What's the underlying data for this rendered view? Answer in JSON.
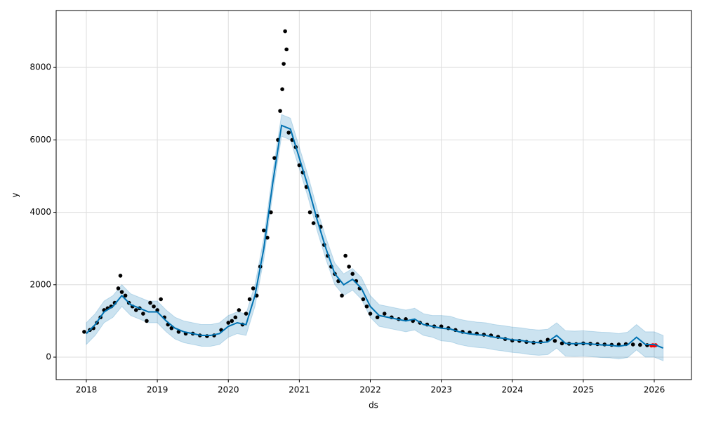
{
  "chart_data": {
    "type": "forecast",
    "xlabel": "ds",
    "ylabel": "y",
    "xlim": [
      2017.575,
      2026.524
    ],
    "ylim": [
      -620,
      9573
    ],
    "xticks": [
      2018,
      2019,
      2020,
      2021,
      2022,
      2023,
      2024,
      2025,
      2026
    ],
    "yticks": [
      0,
      2000,
      4000,
      6000,
      8000
    ],
    "grid": true,
    "x": [
      2018,
      2018.125,
      2018.25,
      2018.375,
      2018.5,
      2018.625,
      2018.75,
      2018.875,
      2019,
      2019.125,
      2019.25,
      2019.375,
      2019.5,
      2019.625,
      2019.75,
      2019.875,
      2020,
      2020.125,
      2020.25,
      2020.375,
      2020.5,
      2020.625,
      2020.75,
      2020.875,
      2021,
      2021.125,
      2021.25,
      2021.375,
      2021.5,
      2021.625,
      2021.75,
      2021.875,
      2022,
      2022.125,
      2022.25,
      2022.375,
      2022.5,
      2022.625,
      2022.75,
      2022.875,
      2023,
      2023.125,
      2023.25,
      2023.375,
      2023.5,
      2023.625,
      2023.75,
      2023.875,
      2024,
      2024.125,
      2024.25,
      2024.375,
      2024.5,
      2024.625,
      2024.75,
      2024.875,
      2025,
      2025.125,
      2025.25,
      2025.375,
      2025.5,
      2025.625,
      2025.75,
      2025.875,
      2026,
      2026.125
    ],
    "series": [
      {
        "color": "#0072b2",
        "values": [
          650,
          900,
          1250,
          1400,
          1700,
          1450,
          1350,
          1250,
          1250,
          1000,
          800,
          700,
          650,
          600,
          600,
          650,
          850,
          950,
          900,
          1700,
          3000,
          4800,
          6400,
          6300,
          5500,
          4700,
          3800,
          3000,
          2300,
          2000,
          2150,
          1900,
          1400,
          1150,
          1100,
          1050,
          1000,
          1050,
          900,
          850,
          800,
          780,
          700,
          650,
          620,
          600,
          550,
          520,
          480,
          460,
          420,
          400,
          420,
          600,
          380,
          370,
          380,
          360,
          340,
          330,
          300,
          340,
          550,
          350,
          350,
          250
        ]
      }
    ],
    "band": {
      "color": "#0072b2",
      "lower": [
        350,
        600,
        950,
        1100,
        1400,
        1150,
        1050,
        950,
        950,
        700,
        500,
        400,
        350,
        300,
        300,
        350,
        550,
        650,
        600,
        1400,
        2700,
        4500,
        6100,
        6000,
        5200,
        4400,
        3500,
        2700,
        2000,
        1700,
        1850,
        1600,
        1100,
        850,
        800,
        750,
        700,
        750,
        600,
        550,
        450,
        430,
        350,
        300,
        270,
        250,
        200,
        170,
        130,
        110,
        70,
        50,
        70,
        250,
        30,
        20,
        30,
        10,
        -10,
        -20,
        -50,
        -10,
        200,
        0,
        0,
        -100
      ],
      "upper": [
        950,
        1200,
        1550,
        1700,
        2000,
        1750,
        1650,
        1550,
        1550,
        1300,
        1100,
        1000,
        950,
        900,
        900,
        950,
        1150,
        1250,
        1200,
        2000,
        3300,
        5100,
        6700,
        6600,
        5800,
        5000,
        4100,
        3300,
        2600,
        2300,
        2450,
        2200,
        1700,
        1450,
        1400,
        1350,
        1300,
        1350,
        1200,
        1150,
        1150,
        1130,
        1050,
        1000,
        970,
        950,
        900,
        870,
        830,
        810,
        770,
        750,
        770,
        950,
        730,
        720,
        730,
        710,
        690,
        680,
        650,
        690,
        900,
        700,
        700,
        600
      ]
    },
    "points": [
      {
        "color": "#000000",
        "x": [
          2017.97,
          2018.05,
          2018.1,
          2018.15,
          2018.2,
          2018.25,
          2018.3,
          2018.35,
          2018.4,
          2018.45,
          2018.48,
          2018.5,
          2018.55,
          2018.6,
          2018.65,
          2018.7,
          2018.75,
          2018.8,
          2018.85,
          2018.9,
          2018.95,
          2019.0,
          2019.05,
          2019.1,
          2019.15,
          2019.2,
          2019.3,
          2019.4,
          2019.5,
          2019.6,
          2019.7,
          2019.8,
          2019.9,
          2020.0,
          2020.05,
          2020.1,
          2020.15,
          2020.2,
          2020.25,
          2020.3,
          2020.35,
          2020.4,
          2020.45,
          2020.5,
          2020.55,
          2020.6,
          2020.65,
          2020.7,
          2020.73,
          2020.76,
          2020.78,
          2020.8,
          2020.82,
          2020.85,
          2020.9,
          2020.95,
          2021.0,
          2021.05,
          2021.1,
          2021.15,
          2021.2,
          2021.25,
          2021.3,
          2021.35,
          2021.4,
          2021.45,
          2021.5,
          2021.55,
          2021.6,
          2021.65,
          2021.7,
          2021.75,
          2021.8,
          2021.85,
          2021.9,
          2021.95,
          2022.0,
          2022.1,
          2022.2,
          2022.3,
          2022.4,
          2022.5,
          2022.6,
          2022.7,
          2022.8,
          2022.9,
          2023.0,
          2023.1,
          2023.2,
          2023.3,
          2023.4,
          2023.5,
          2023.6,
          2023.7,
          2023.8,
          2023.9,
          2024.0,
          2024.1,
          2024.2,
          2024.3,
          2024.4,
          2024.5,
          2024.6,
          2024.7,
          2024.8,
          2024.9,
          2025.0,
          2025.1,
          2025.2,
          2025.3,
          2025.4,
          2025.5,
          2025.6,
          2025.7,
          2025.8,
          2025.9
        ],
        "values": [
          700,
          750,
          800,
          950,
          1100,
          1300,
          1350,
          1400,
          1500,
          1900,
          2250,
          1800,
          1700,
          1500,
          1400,
          1300,
          1350,
          1200,
          1000,
          1500,
          1400,
          1300,
          1600,
          1100,
          900,
          800,
          700,
          650,
          650,
          600,
          580,
          600,
          750,
          950,
          1000,
          1100,
          1300,
          900,
          1200,
          1600,
          1900,
          1700,
          2500,
          3500,
          3300,
          4000,
          5500,
          6000,
          6800,
          7400,
          8100,
          9000,
          8500,
          6200,
          6000,
          5800,
          5300,
          5100,
          4700,
          4000,
          3700,
          3900,
          3600,
          3100,
          2800,
          2500,
          2300,
          2100,
          1700,
          2800,
          2500,
          2300,
          2100,
          1900,
          1600,
          1400,
          1200,
          1100,
          1200,
          1100,
          1050,
          1050,
          1000,
          950,
          900,
          850,
          850,
          800,
          750,
          700,
          680,
          650,
          620,
          600,
          560,
          500,
          460,
          450,
          420,
          400,
          420,
          480,
          450,
          380,
          370,
          360,
          380,
          370,
          360,
          350,
          340,
          350,
          360,
          350,
          340,
          330
        ]
      },
      {
        "color": "#ff0000",
        "x": [
          2025.96,
          2025.98,
          2026.0,
          2026.02
        ],
        "values": [
          320,
          330,
          320,
          330
        ]
      }
    ]
  }
}
